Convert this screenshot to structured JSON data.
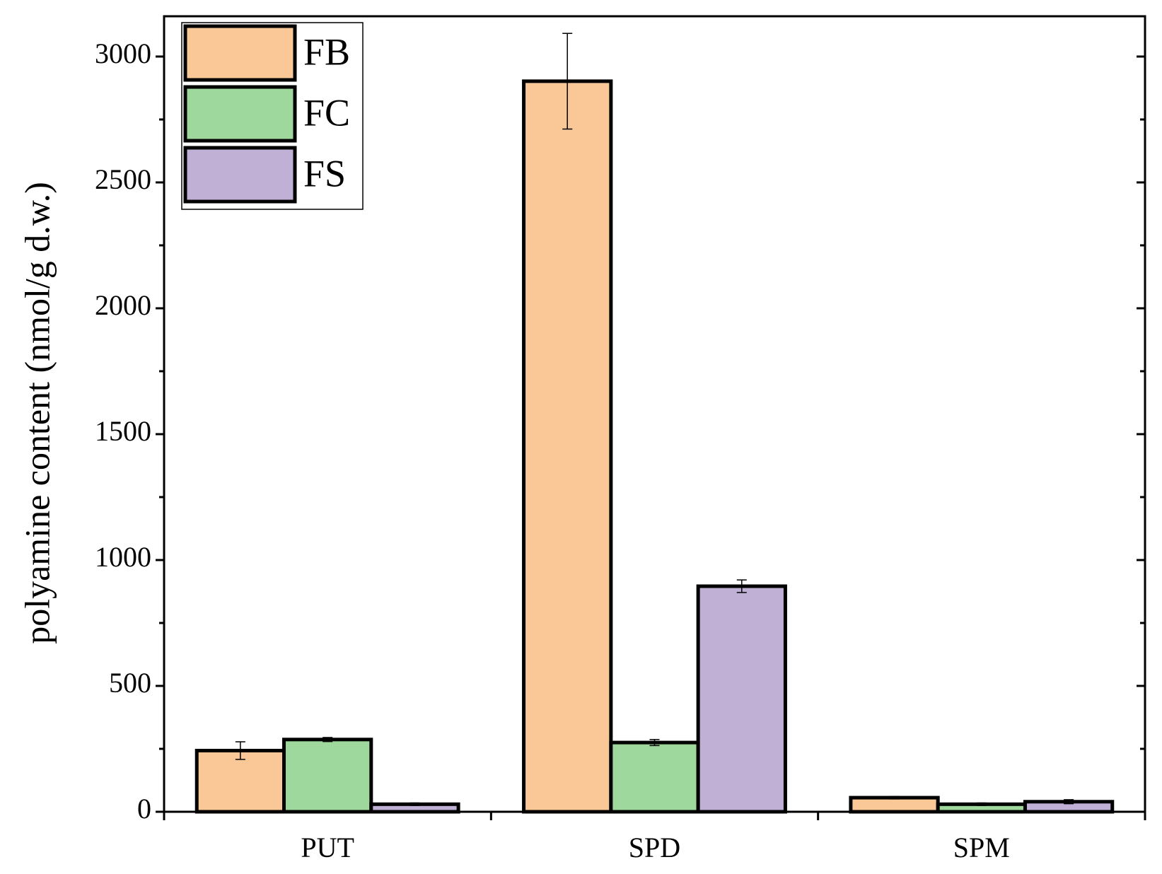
{
  "chart_data": {
    "type": "bar",
    "y_label": "polyamine content (nmol/g d.w.)",
    "categories": [
      "PUT",
      "SPD",
      "SPM"
    ],
    "series": [
      {
        "name": "FB",
        "color": "#f9c896",
        "values": [
          243,
          2902,
          56
        ],
        "errors": [
          35,
          190,
          5
        ]
      },
      {
        "name": "FC",
        "color": "#9fd89c",
        "values": [
          287,
          275,
          30
        ],
        "errors": [
          8,
          12,
          5
        ]
      },
      {
        "name": "FS",
        "color": "#c1b0d6",
        "values": [
          30,
          896,
          40
        ],
        "errors": [
          5,
          25,
          8
        ]
      }
    ],
    "ylim": [
      0,
      3160
    ],
    "yticks": [
      0,
      500,
      1000,
      1500,
      2000,
      2500,
      3000
    ],
    "legend": "upper-left"
  }
}
